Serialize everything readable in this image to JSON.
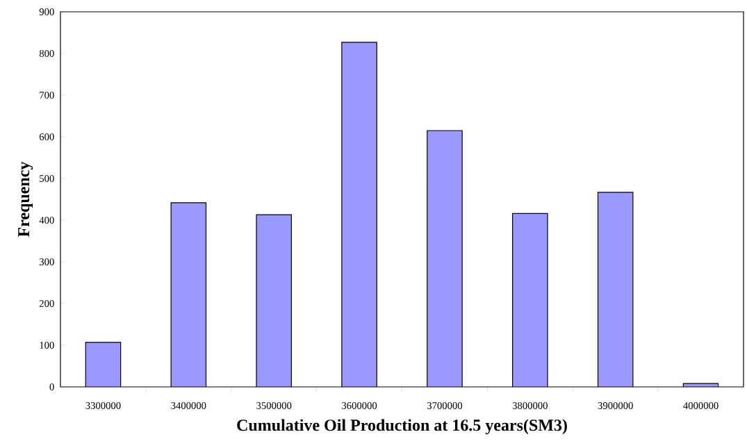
{
  "chart_data": {
    "type": "bar",
    "xlabel": "Cumulative Oil Production at 16.5 years(SM3)",
    "ylabel": "Frequency",
    "categories": [
      "3300000",
      "3400000",
      "3500000",
      "3600000",
      "3700000",
      "3800000",
      "3900000",
      "4000000"
    ],
    "values": [
      107,
      442,
      413,
      827,
      615,
      416,
      467,
      8
    ],
    "color": "#9999ff",
    "ylim": [
      0,
      900
    ],
    "yticks": [
      0,
      100,
      200,
      300,
      400,
      500,
      600,
      700,
      800,
      900
    ]
  }
}
